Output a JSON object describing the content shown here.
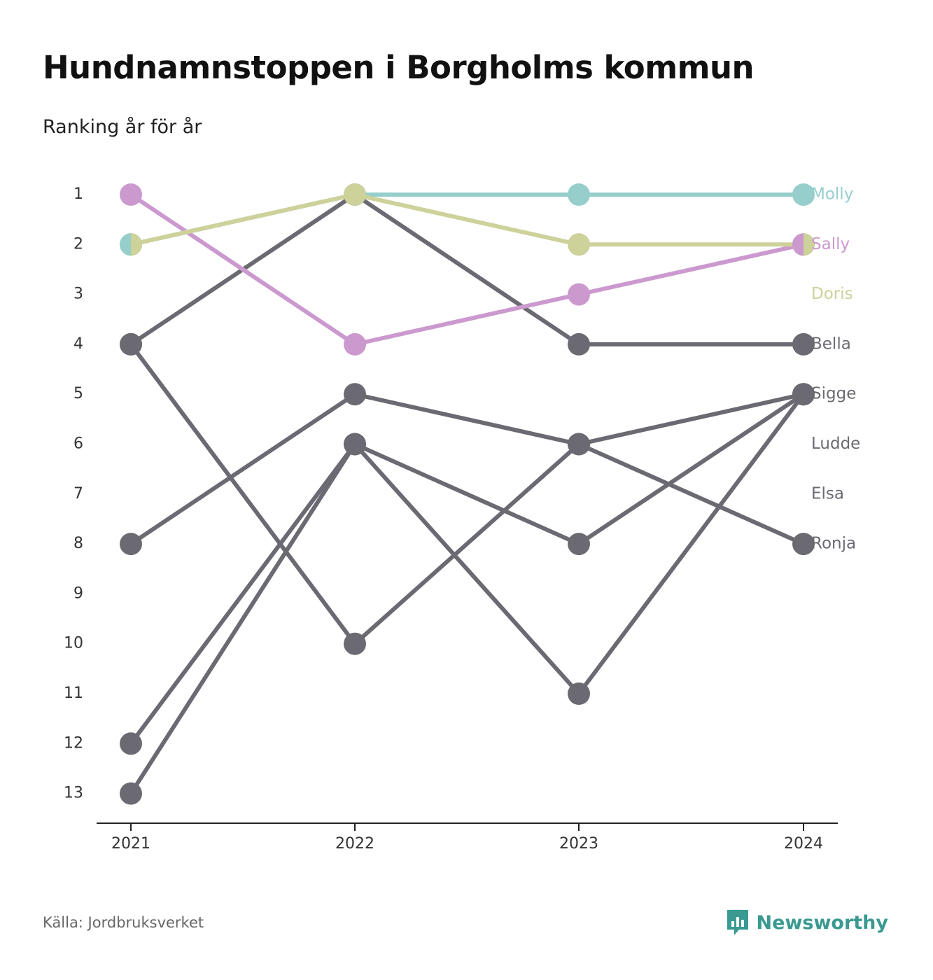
{
  "header": {
    "title": "Hundnamnstoppen i Borgholms kommun",
    "subtitle": "Ranking år för år"
  },
  "footer": {
    "source": "Källa: Jordbruksverket",
    "brand": "Newsworthy",
    "brand_icon": "bar-chart-speech-bubble-icon",
    "brand_color": "#3a9a91"
  },
  "chart_data": {
    "type": "line",
    "title": "Hundnamnstoppen i Borgholms kommun",
    "subtitle": "Ranking år för år",
    "x": [
      "2021",
      "2022",
      "2023",
      "2024"
    ],
    "y_ticks": [
      "1",
      "2",
      "3",
      "4",
      "5",
      "6",
      "7",
      "8",
      "9",
      "10",
      "11",
      "12",
      "13"
    ],
    "ylim": [
      1,
      13
    ],
    "y_inverted": true,
    "grid": false,
    "legend": "end labels at right",
    "series": [
      {
        "name": "Molly",
        "values": [
          2,
          1,
          1,
          1
        ],
        "color": "#96cecc"
      },
      {
        "name": "Sally",
        "values": [
          1,
          4,
          3,
          2
        ],
        "color": "#cc99cf"
      },
      {
        "name": "Doris",
        "values": [
          2,
          1,
          2,
          2
        ],
        "color": "#cdd19a"
      },
      {
        "name": "Bella",
        "values": [
          4,
          1,
          4,
          4
        ],
        "color": "#6b6a72"
      },
      {
        "name": "Sigge",
        "values": [
          8,
          5,
          6,
          5
        ],
        "color": "#6b6a72"
      },
      {
        "name": "Ludde",
        "values": [
          13,
          6,
          8,
          5
        ],
        "color": "#6b6a72"
      },
      {
        "name": "Elsa",
        "values": [
          12,
          6,
          11,
          5
        ],
        "color": "#6b6a72"
      },
      {
        "name": "Ronja",
        "values": [
          4,
          10,
          6,
          8
        ],
        "color": "#6b6a72"
      }
    ],
    "end_labels": [
      {
        "text": "Molly",
        "rank": 1,
        "color": "#96cecc"
      },
      {
        "text": "Sally",
        "rank": 2,
        "color": "#cc99cf"
      },
      {
        "text": "Doris",
        "rank": 3,
        "color": "#cdd19a"
      },
      {
        "text": "Bella",
        "rank": 4,
        "color": "#6b6a72"
      },
      {
        "text": "Sigge",
        "rank": 5,
        "color": "#6b6a72"
      },
      {
        "text": "Ludde",
        "rank": 6,
        "color": "#6b6a72"
      },
      {
        "text": "Elsa",
        "rank": 7,
        "color": "#6b6a72"
      },
      {
        "text": "Ronja",
        "rank": 8,
        "color": "#6b6a72"
      }
    ]
  }
}
